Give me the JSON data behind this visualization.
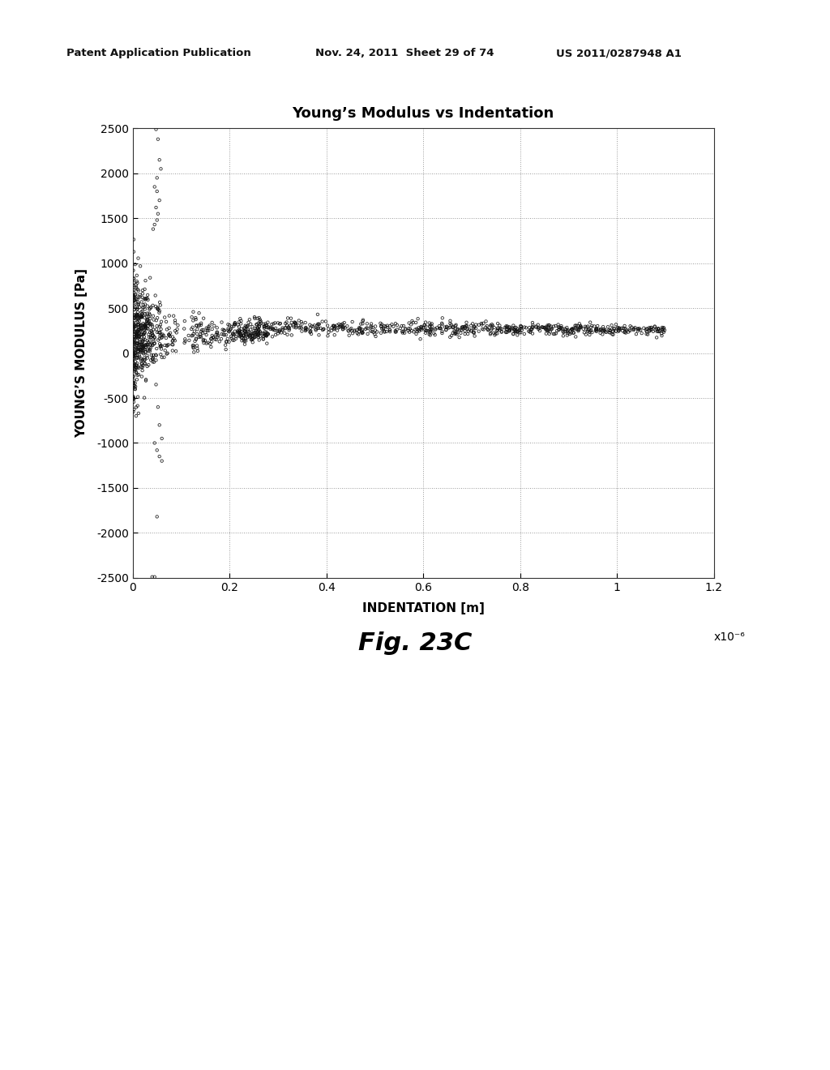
{
  "title": "Young’s Modulus vs Indentation",
  "xlabel": "INDENTATION [m]",
  "ylabel": "YOUNG’S MODULUS [Pa]",
  "xlabel_scale": "x10⁻⁶",
  "fig_label": "Fig. 23C",
  "patent_line1": "Patent Application Publication",
  "patent_line2": "Nov. 24, 2011  Sheet 29 of 74",
  "patent_line3": "US 2011/0287948 A1",
  "xlim": [
    0,
    1.2
  ],
  "ylim": [
    -2500,
    2500
  ],
  "xticks": [
    0,
    0.2,
    0.4,
    0.6,
    0.8,
    1.0,
    1.2
  ],
  "yticks": [
    -2500,
    -2000,
    -1500,
    -1000,
    -500,
    0,
    500,
    1000,
    1500,
    2000,
    2500
  ],
  "background_color": "#ffffff",
  "scatter_color": "#111111",
  "grid_color": "#999999",
  "grid_style": ":"
}
